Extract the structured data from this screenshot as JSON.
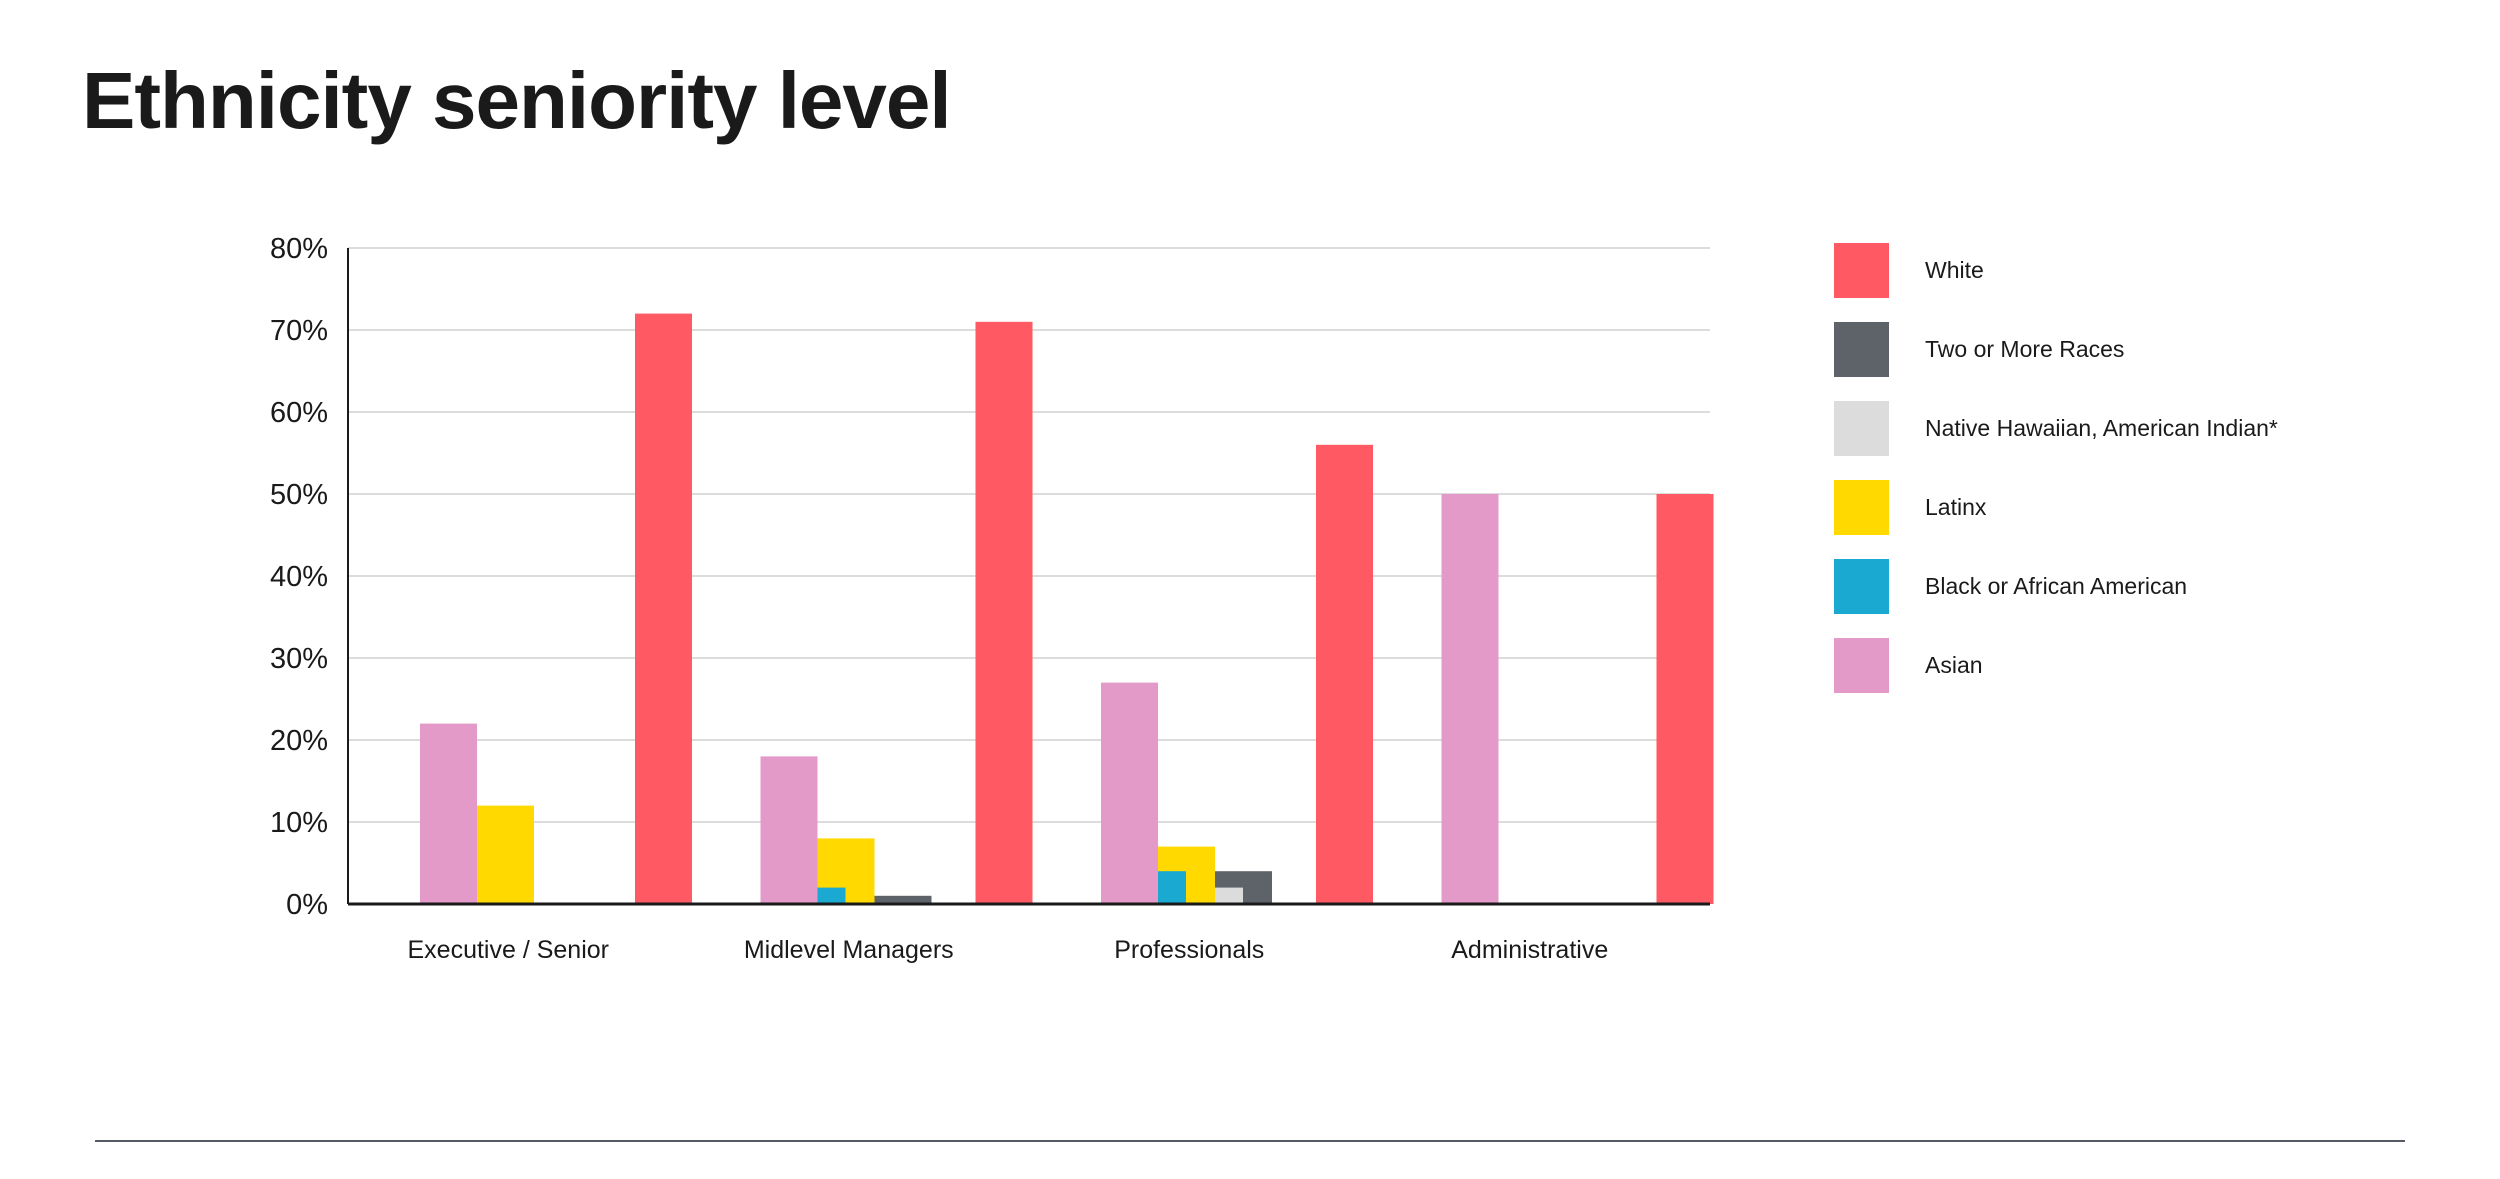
{
  "page": {
    "title": "Ethnicity seniority level"
  },
  "chart_data": {
    "type": "bar",
    "title": "Ethnicity seniority level",
    "xlabel": "",
    "ylabel": "",
    "ylim": [
      0,
      80
    ],
    "y_ticks": [
      "0%",
      "10%",
      "20%",
      "30%",
      "40%",
      "50%",
      "60%",
      "70%",
      "80%"
    ],
    "grid": true,
    "legend_position": "right",
    "categories": [
      "Executive / Senior",
      "Midlevel Managers",
      "Professionals",
      "Administrative"
    ],
    "series": [
      {
        "name": "Asian",
        "color": "#E39AC9",
        "values": [
          22,
          18,
          27,
          50
        ]
      },
      {
        "name": "Black or African American",
        "color": "#19A9D1",
        "values": [
          0,
          2,
          4,
          0
        ]
      },
      {
        "name": "Latinx",
        "color": "#FFD900",
        "values": [
          12,
          8,
          7,
          0
        ]
      },
      {
        "name": "Native Hawaiian, American Indian*",
        "color": "#DCDCDC",
        "values": [
          0,
          0,
          2,
          0
        ]
      },
      {
        "name": "Two or More Races",
        "color": "#5E6369",
        "values": [
          0,
          1,
          4,
          0
        ]
      },
      {
        "name": "White",
        "color": "#FF5A63",
        "values": [
          72,
          71,
          56,
          50
        ]
      }
    ],
    "legend_order": [
      "White",
      "Two or More Races",
      "Native Hawaiian, American Indian*",
      "Latinx",
      "Black or African American",
      "Asian"
    ]
  }
}
